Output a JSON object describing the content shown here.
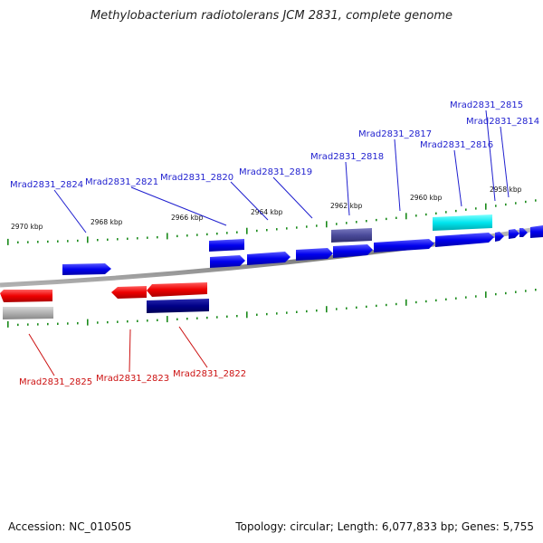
{
  "title": "Methylobacterium radiotolerans JCM 2831, complete genome",
  "footer": {
    "accession": "Accession: NC_010505",
    "info": "Topology: circular; Length: 6,077,833 bp; Genes: 5,755"
  },
  "colors": {
    "forward_gene": "#0000ee",
    "reverse_gene": "#ee0000",
    "forward_label": "#1f1fcf",
    "reverse_label": "#cc1111",
    "highlight_cyan": "#00e5ee",
    "dark_blue": "#000088",
    "slate": "#4a4a9a",
    "gray_gene": "#b0b0b0",
    "backbone": "#8a8a8a",
    "tick": "#1a8a1a"
  },
  "kbp_labels": [
    "2970 kbp",
    "2968 kbp",
    "2966 kbp",
    "2964 kbp",
    "2962 kbp",
    "2960 kbp",
    "2958 kbp"
  ],
  "forward_labels": [
    "Mrad2831_2824",
    "Mrad2831_2821",
    "Mrad2831_2820",
    "Mrad2831_2819",
    "Mrad2831_2818",
    "Mrad2831_2817",
    "Mrad2831_2816",
    "Mrad2831_2815",
    "Mrad2831_2814"
  ],
  "reverse_labels": [
    "Mrad2831_2825",
    "Mrad2831_2823",
    "Mrad2831_2822"
  ]
}
